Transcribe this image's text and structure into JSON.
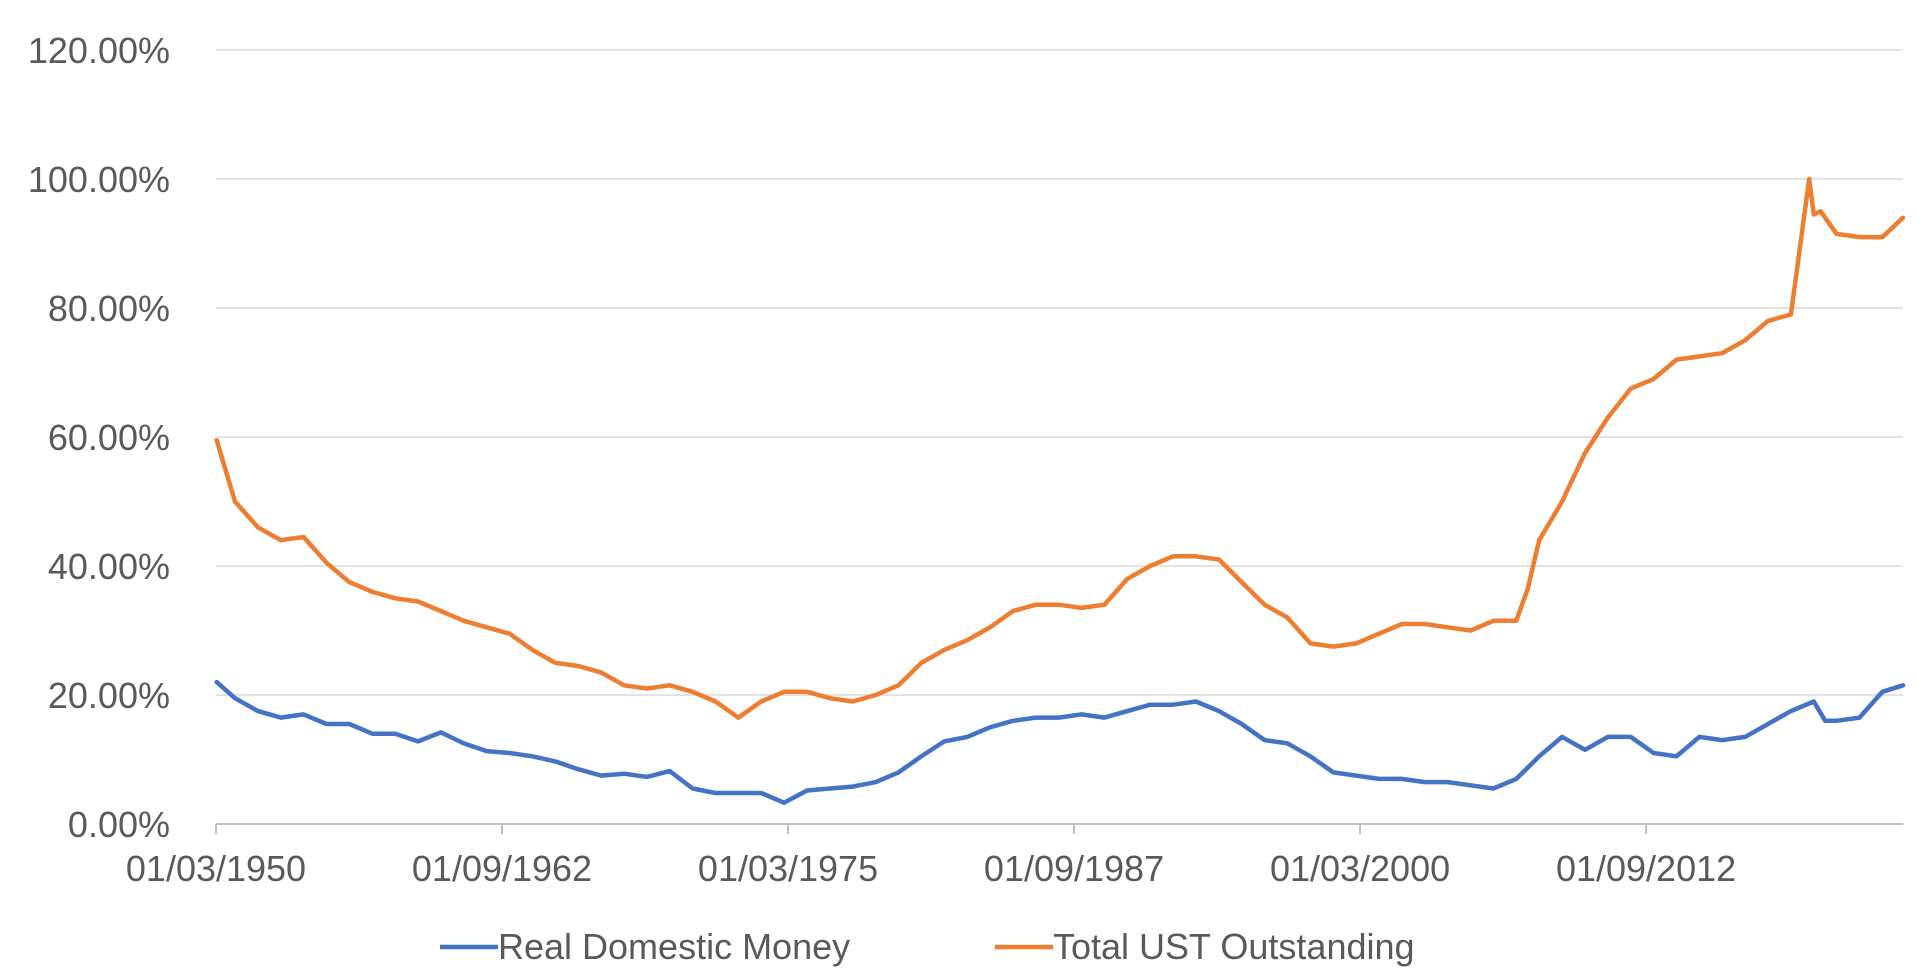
{
  "chart_data": {
    "type": "line",
    "title": "",
    "xlabel": "",
    "ylabel": "",
    "ylim": [
      0,
      120
    ],
    "y_ticks": [
      "0.00%",
      "20.00%",
      "40.00%",
      "60.00%",
      "80.00%",
      "100.00%",
      "120.00%"
    ],
    "x_ticks": [
      "01/03/1950",
      "01/09/1962",
      "01/03/1975",
      "01/09/1987",
      "01/03/2000",
      "01/09/2012"
    ],
    "x_tick_years": [
      1950.17,
      1962.67,
      1975.17,
      1987.67,
      2000.17,
      2012.67
    ],
    "xlim": [
      1950.17,
      2023.9
    ],
    "grid": "horizontal",
    "legend_position": "bottom",
    "series": [
      {
        "name": "Real Domestic Money",
        "color": "#4472C4",
        "x": [
          1950.2,
          1951,
          1952,
          1953,
          1954,
          1955,
          1956,
          1957,
          1958,
          1959,
          1960,
          1961,
          1962,
          1963,
          1964,
          1965,
          1966,
          1967,
          1968,
          1969,
          1970,
          1971,
          1972,
          1973,
          1974,
          1975,
          1976,
          1977,
          1978,
          1979,
          1980,
          1981,
          1982,
          1983,
          1984,
          1985,
          1986,
          1987,
          1988,
          1989,
          1990,
          1991,
          1992,
          1993,
          1994,
          1995,
          1996,
          1997,
          1998,
          1999,
          2000,
          2001,
          2002,
          2003,
          2004,
          2005,
          2006,
          2007,
          2008,
          2009,
          2010,
          2011,
          2012,
          2013,
          2014,
          2015,
          2016,
          2017,
          2018,
          2019,
          2020,
          2020.5,
          2021,
          2022,
          2023,
          2023.9
        ],
        "values": [
          22.0,
          19.5,
          17.5,
          16.5,
          17.0,
          15.5,
          15.5,
          14.0,
          14.0,
          12.8,
          14.2,
          12.5,
          11.3,
          11.0,
          10.5,
          9.7,
          8.5,
          7.5,
          7.8,
          7.3,
          8.2,
          5.5,
          4.8,
          4.8,
          4.8,
          3.3,
          5.2,
          5.5,
          5.8,
          6.5,
          8.0,
          10.5,
          12.8,
          13.5,
          15.0,
          16.0,
          16.5,
          16.5,
          17.0,
          16.5,
          17.5,
          18.5,
          18.5,
          19.0,
          17.5,
          15.5,
          13.0,
          12.5,
          10.5,
          8.0,
          7.5,
          7.0,
          7.0,
          6.5,
          6.5,
          6.0,
          5.5,
          7.0,
          10.5,
          13.5,
          11.5,
          13.5,
          13.5,
          11.0,
          10.5,
          13.5,
          13.0,
          13.5,
          15.5,
          17.5,
          19.0,
          16.0,
          16.0,
          16.5,
          20.5,
          21.5
        ]
      },
      {
        "name": "Total UST Outstanding",
        "color": "#ED7D31",
        "x": [
          1950.2,
          1951,
          1952,
          1953,
          1954,
          1955,
          1956,
          1957,
          1958,
          1959,
          1960,
          1961,
          1962,
          1963,
          1964,
          1965,
          1966,
          1967,
          1968,
          1969,
          1970,
          1971,
          1972,
          1973,
          1974,
          1975,
          1976,
          1977,
          1978,
          1979,
          1980,
          1981,
          1982,
          1983,
          1984,
          1985,
          1986,
          1987,
          1988,
          1989,
          1990,
          1991,
          1992,
          1993,
          1994,
          1995,
          1996,
          1997,
          1998,
          1999,
          2000,
          2001,
          2002,
          2003,
          2004,
          2005,
          2006,
          2007,
          2007.5,
          2008,
          2009,
          2010,
          2011,
          2012,
          2013,
          2014,
          2015,
          2016,
          2017,
          2018,
          2019,
          2019.8,
          2020,
          2020.3,
          2021,
          2022,
          2023,
          2023.9
        ],
        "values": [
          59.5,
          50.0,
          46.0,
          44.0,
          44.5,
          40.5,
          37.5,
          36.0,
          35.0,
          34.5,
          33.0,
          31.5,
          30.5,
          29.5,
          27.0,
          25.0,
          24.5,
          23.5,
          21.5,
          21.0,
          21.5,
          20.5,
          19.0,
          16.5,
          19.0,
          20.5,
          20.5,
          19.5,
          19.0,
          20.0,
          21.5,
          25.0,
          27.0,
          28.5,
          30.5,
          33.0,
          34.0,
          34.0,
          33.5,
          34.0,
          38.0,
          40.0,
          41.5,
          41.5,
          41.0,
          37.5,
          34.0,
          32.0,
          28.0,
          27.5,
          28.0,
          29.5,
          31.0,
          31.0,
          30.5,
          30.0,
          31.5,
          31.5,
          36.5,
          44.0,
          50.0,
          57.5,
          63.0,
          67.5,
          69.0,
          72.0,
          72.5,
          73.0,
          75.0,
          78.0,
          79.0,
          100.0,
          94.5,
          95.0,
          91.5,
          91.0,
          91.0,
          94.0
        ]
      }
    ]
  }
}
